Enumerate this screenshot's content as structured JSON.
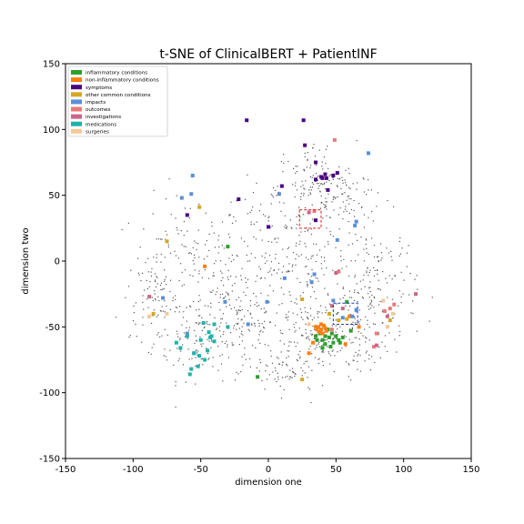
{
  "chart_data": {
    "type": "scatter",
    "title": "t-SNE of ClinicalBERT + PatientINF",
    "xlabel": "dimension one",
    "ylabel": "dimension two",
    "xlim": [
      -150,
      150
    ],
    "ylim": [
      -150,
      150
    ],
    "xticks": [
      -150,
      -100,
      -50,
      0,
      50,
      100,
      150
    ],
    "yticks": [
      -150,
      -100,
      -50,
      0,
      50,
      100,
      150
    ],
    "grid": false,
    "legend_position": "top-left",
    "background_points": {
      "color": "#555555",
      "regions": [
        {
          "cx": -60,
          "cy": -5,
          "rx": 35,
          "ry": 45,
          "n": 160
        },
        {
          "cx": -50,
          "cy": -60,
          "rx": 30,
          "ry": 25,
          "n": 120
        },
        {
          "cx": -85,
          "cy": -30,
          "rx": 15,
          "ry": 25,
          "n": 60
        },
        {
          "cx": -20,
          "cy": -40,
          "rx": 25,
          "ry": 35,
          "n": 120
        },
        {
          "cx": 0,
          "cy": 25,
          "rx": 30,
          "ry": 30,
          "n": 80
        },
        {
          "cx": 35,
          "cy": 55,
          "rx": 25,
          "ry": 30,
          "n": 150
        },
        {
          "cx": 40,
          "cy": -55,
          "rx": 40,
          "ry": 25,
          "n": 230
        },
        {
          "cx": 25,
          "cy": -5,
          "rx": 30,
          "ry": 30,
          "n": 120
        },
        {
          "cx": 80,
          "cy": -20,
          "rx": 25,
          "ry": 40,
          "n": 160
        },
        {
          "cx": 60,
          "cy": 50,
          "rx": 20,
          "ry": 20,
          "n": 50
        },
        {
          "cx": 15,
          "cy": -85,
          "rx": 25,
          "ry": 15,
          "n": 70
        }
      ]
    },
    "series": [
      {
        "name": "inflammatory conditions",
        "color": "#2ca02c",
        "points": [
          [
            -30,
            11
          ],
          [
            -8,
            -88
          ],
          [
            58,
            -31
          ],
          [
            40,
            -60
          ],
          [
            42,
            -63
          ],
          [
            45,
            -58
          ],
          [
            38,
            -55
          ],
          [
            48,
            -62
          ],
          [
            52,
            -60
          ],
          [
            44,
            -52
          ],
          [
            36,
            -60
          ],
          [
            50,
            -57
          ],
          [
            55,
            -58
          ],
          [
            42,
            -57
          ],
          [
            47,
            -55
          ],
          [
            53,
            -62
          ],
          [
            46,
            -65
          ],
          [
            61,
            -53
          ],
          [
            40,
            -66
          ],
          [
            35,
            -57
          ]
        ]
      },
      {
        "name": "non-inflammatory conditions",
        "color": "#ff7f0e",
        "points": [
          [
            -47,
            -4
          ],
          [
            57,
            -63
          ],
          [
            37,
            -50
          ],
          [
            39,
            -52
          ],
          [
            41,
            -49
          ],
          [
            36,
            -52
          ],
          [
            40,
            -55
          ],
          [
            42,
            -51
          ],
          [
            38,
            -54
          ],
          [
            35,
            -50
          ],
          [
            43,
            -53
          ],
          [
            39,
            -48
          ],
          [
            67,
            -50
          ],
          [
            60,
            -42
          ],
          [
            33,
            -62
          ],
          [
            30,
            -70
          ]
        ]
      },
      {
        "name": "symptoms",
        "color": "#4b0082",
        "points": [
          [
            -16,
            107
          ],
          [
            26,
            107
          ],
          [
            27,
            88
          ],
          [
            35,
            75
          ],
          [
            10,
            57
          ],
          [
            39,
            64
          ],
          [
            43,
            63
          ],
          [
            42,
            66
          ],
          [
            48,
            65
          ],
          [
            51,
            67
          ],
          [
            35,
            62
          ],
          [
            44,
            54
          ],
          [
            -22,
            47
          ],
          [
            -60,
            35
          ],
          [
            0,
            26
          ],
          [
            35,
            31
          ],
          [
            40,
            63
          ]
        ]
      },
      {
        "name": "other common conditions",
        "color": "#d4a820",
        "points": [
          [
            -51,
            41
          ],
          [
            -75,
            15
          ],
          [
            -85,
            -40
          ],
          [
            25,
            -90
          ],
          [
            25,
            -29
          ],
          [
            58,
            -44
          ],
          [
            52,
            -45
          ],
          [
            45,
            -40
          ],
          [
            90,
            -45
          ]
        ]
      },
      {
        "name": "impacts",
        "color": "#5b8fd6",
        "points": [
          [
            -56,
            65
          ],
          [
            -57,
            51
          ],
          [
            -64,
            48
          ],
          [
            74,
            82
          ],
          [
            8,
            51
          ],
          [
            65,
            30
          ],
          [
            64,
            27
          ],
          [
            51,
            16
          ],
          [
            12,
            -13
          ],
          [
            34,
            -10
          ],
          [
            32,
            -16
          ],
          [
            -1,
            -31
          ],
          [
            -32,
            -31
          ],
          [
            -15,
            -48
          ],
          [
            -78,
            -28
          ],
          [
            -55,
            -70
          ],
          [
            -60,
            -55
          ],
          [
            48,
            -30
          ],
          [
            65,
            -37
          ],
          [
            62,
            -42
          ],
          [
            55,
            -43
          ]
        ]
      },
      {
        "name": "outcomes",
        "color": "#e87a7a",
        "points": [
          [
            49,
            92
          ],
          [
            52,
            -8
          ],
          [
            90,
            -36
          ],
          [
            80,
            -55
          ],
          [
            86,
            -38
          ],
          [
            93,
            -33
          ],
          [
            34,
            38
          ],
          [
            78,
            -65
          ],
          [
            47,
            -52
          ]
        ]
      },
      {
        "name": "investigations",
        "color": "#cc6688",
        "points": [
          [
            109,
            -25
          ],
          [
            -88,
            -27
          ],
          [
            88,
            -42
          ],
          [
            80,
            -64
          ],
          [
            50,
            -9
          ],
          [
            47,
            -34
          ],
          [
            55,
            -36
          ],
          [
            30,
            37
          ]
        ]
      },
      {
        "name": "medications",
        "color": "#20b2aa",
        "points": [
          [
            -68,
            -62
          ],
          [
            -60,
            -57
          ],
          [
            -50,
            -60
          ],
          [
            -48,
            -47
          ],
          [
            -44,
            -54
          ],
          [
            -43,
            -58
          ],
          [
            -55,
            -70
          ],
          [
            -51,
            -72
          ],
          [
            -47,
            -75
          ],
          [
            -52,
            -80
          ],
          [
            -57,
            -82
          ],
          [
            -40,
            -61
          ],
          [
            -45,
            -68
          ],
          [
            -30,
            -50
          ],
          [
            -58,
            -86
          ],
          [
            -65,
            -66
          ],
          [
            -40,
            -48
          ],
          [
            -42,
            -57
          ]
        ]
      },
      {
        "name": "surgeries",
        "color": "#f5c89a",
        "points": [
          [
            -88,
            -42
          ],
          [
            -75,
            -40
          ],
          [
            30,
            -48
          ],
          [
            92,
            -40
          ],
          [
            88,
            -50
          ],
          [
            85,
            -30
          ]
        ]
      }
    ],
    "annotations": [
      {
        "type": "dashed-box",
        "color": "#e02020",
        "x0": 23,
        "x1": 39,
        "y0": 25,
        "y1": 39
      },
      {
        "type": "dashed-box",
        "color": "#1f3fb0",
        "x0": 48,
        "x1": 66,
        "y0": -48,
        "y1": -32
      }
    ]
  }
}
